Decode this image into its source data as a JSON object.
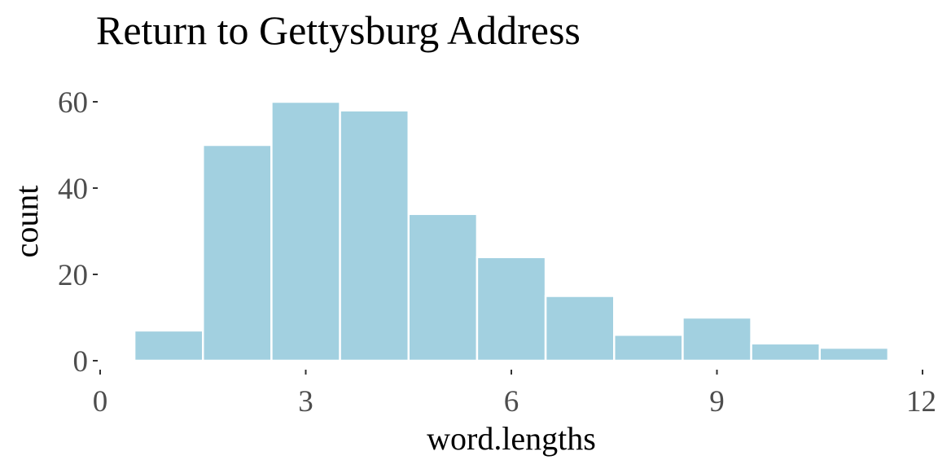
{
  "chart_data": {
    "type": "bar",
    "title": "Return to Gettysburg Address",
    "xlabel": "word.lengths",
    "ylabel": "count",
    "bins": [
      {
        "x": 1,
        "count": 7
      },
      {
        "x": 2,
        "count": 50
      },
      {
        "x": 3,
        "count": 60
      },
      {
        "x": 4,
        "count": 58
      },
      {
        "x": 5,
        "count": 34
      },
      {
        "x": 6,
        "count": 24
      },
      {
        "x": 7,
        "count": 15
      },
      {
        "x": 8,
        "count": 6
      },
      {
        "x": 9,
        "count": 10
      },
      {
        "x": 10,
        "count": 4
      },
      {
        "x": 11,
        "count": 3
      }
    ],
    "bin_width": 1,
    "xlim": [
      0,
      12
    ],
    "ylim": [
      0,
      60
    ],
    "x_ticks": [
      0,
      3,
      6,
      9,
      12
    ],
    "y_ticks": [
      0,
      20,
      40,
      60
    ],
    "bar_color": "#a2d0e0",
    "bar_outline_color": "#ffffff",
    "background_color": "#ffffff",
    "grid": false,
    "legend": "none"
  }
}
